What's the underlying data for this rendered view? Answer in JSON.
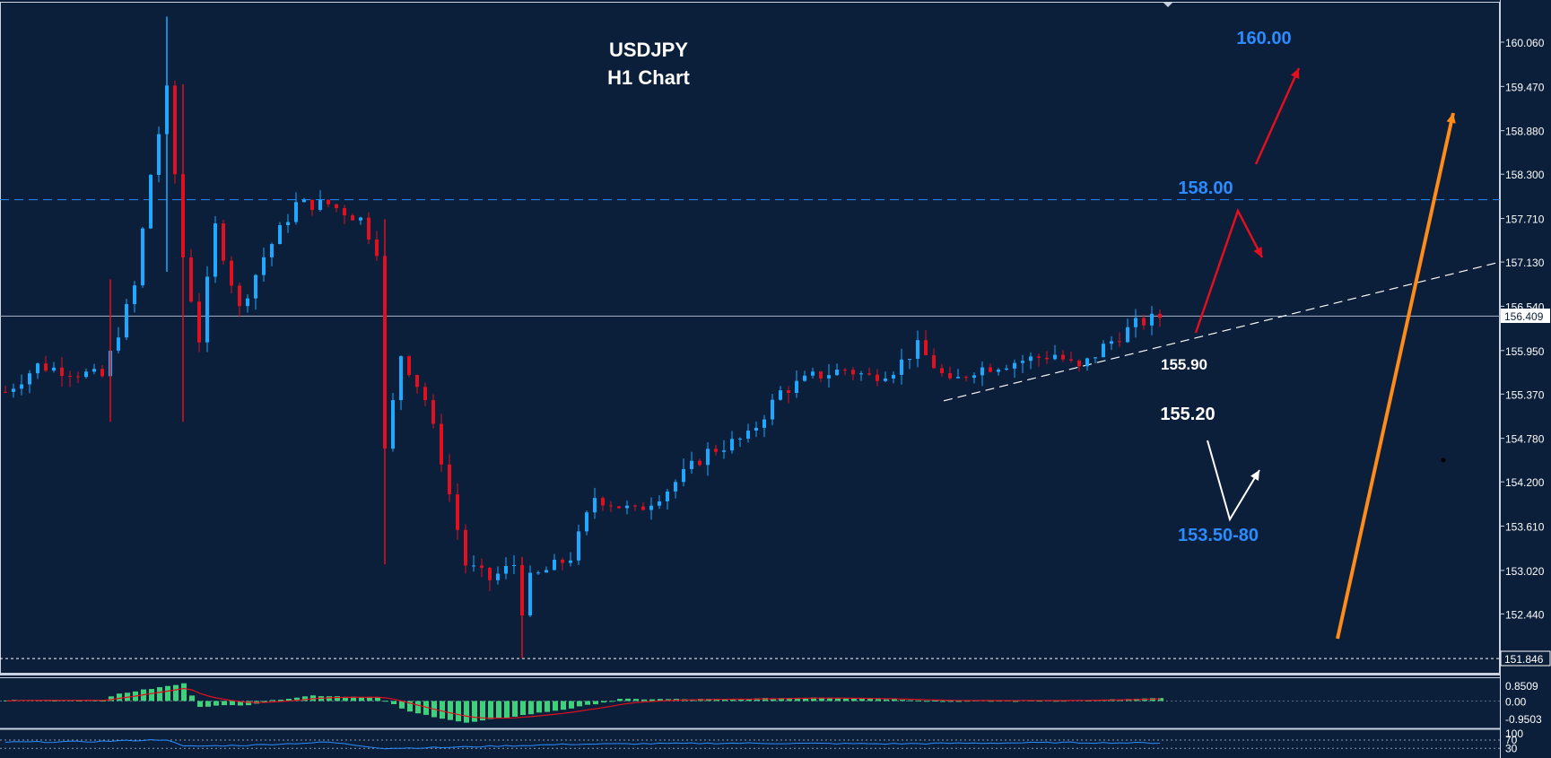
{
  "colors": {
    "background": "#0b1e3a",
    "bull": "#1ea8ff",
    "bear": "#e0101e",
    "accent_blue": "#2a8cff",
    "orange": "#ff8c1a",
    "hist": "#3ed07a",
    "signal": "#e0101e"
  },
  "chart_data": [
    {
      "type": "candlestick",
      "title_line1": "USDJPY",
      "title_line2": "H1 Chart",
      "y_ticks": [
        "160.060",
        "159.470",
        "158.880",
        "158.300",
        "157.710",
        "157.130",
        "156.540",
        "155.950",
        "155.370",
        "154.780",
        "154.200",
        "153.610",
        "153.020",
        "152.440"
      ],
      "ylim": [
        151.8,
        160.4
      ],
      "current_price": "156.409",
      "bottom_price": "151.846",
      "levels": [
        {
          "value": 157.96,
          "style": "dashed",
          "color": "#2a8cff"
        },
        {
          "value": 156.409,
          "style": "solid",
          "color": "#a8b4c8"
        },
        {
          "value": 151.846,
          "style": "dotted",
          "color": "#ffffff"
        }
      ],
      "trendline": {
        "from": [
          0,
          155.28
        ],
        "to": [
          186,
          157.13
        ],
        "color": "#ffffff",
        "style": "dashed"
      },
      "annotations": [
        {
          "text": "160.00",
          "value": 160.0,
          "color": "#2a8cff"
        },
        {
          "text": "158.00",
          "value": 158.0,
          "color": "#2a8cff"
        },
        {
          "text": "155.90",
          "value": 155.9,
          "color": "#ffffff"
        },
        {
          "text": "155.20",
          "value": 155.2,
          "color": "#ffffff"
        },
        {
          "text": "153.50-80",
          "value": 153.65,
          "color": "#2a8cff"
        }
      ],
      "candle_anchors": [
        [
          0,
          155.4
        ],
        [
          4,
          155.75
        ],
        [
          12,
          155.6
        ],
        [
          14,
          156.2
        ],
        [
          16,
          156.8
        ],
        [
          18,
          158.3
        ],
        [
          20,
          159.4
        ],
        [
          22,
          157.2
        ],
        [
          24,
          156.1
        ],
        [
          26,
          157.6
        ],
        [
          29,
          156.5
        ],
        [
          32,
          157.2
        ],
        [
          36,
          157.9
        ],
        [
          40,
          157.9
        ],
        [
          44,
          157.7
        ],
        [
          46,
          157.3
        ],
        [
          47,
          154.6
        ],
        [
          49,
          155.9
        ],
        [
          52,
          155.3
        ],
        [
          54,
          154.5
        ],
        [
          57,
          153.1
        ],
        [
          60,
          152.9
        ],
        [
          63,
          153.1
        ],
        [
          64,
          152.5
        ],
        [
          65,
          152.9
        ],
        [
          70,
          153.2
        ],
        [
          73,
          154.0
        ],
        [
          78,
          153.8
        ],
        [
          82,
          154.1
        ],
        [
          87,
          154.6
        ],
        [
          92,
          154.8
        ],
        [
          96,
          155.4
        ],
        [
          100,
          155.6
        ],
        [
          104,
          155.7
        ],
        [
          107,
          155.6
        ],
        [
          110,
          155.7
        ],
        [
          113,
          156.0
        ],
        [
          117,
          155.5
        ],
        [
          120,
          155.7
        ],
        [
          125,
          155.8
        ],
        [
          130,
          155.9
        ],
        [
          133,
          155.7
        ],
        [
          136,
          156.0
        ],
        [
          140,
          156.3
        ],
        [
          143,
          156.4
        ]
      ]
    },
    {
      "type": "bar",
      "name": "oscillator",
      "y_ticks": [
        "0.8509",
        "0.00",
        "-0.9503"
      ],
      "ylim": [
        -1.4,
        1.2
      ],
      "anchors": [
        [
          0,
          0.05
        ],
        [
          12,
          0.05
        ],
        [
          14,
          0.4
        ],
        [
          22,
          0.95
        ],
        [
          24,
          -0.3
        ],
        [
          30,
          -0.2
        ],
        [
          34,
          0.1
        ],
        [
          38,
          0.3
        ],
        [
          46,
          0.2
        ],
        [
          50,
          -0.6
        ],
        [
          57,
          -1.2
        ],
        [
          62,
          -0.9
        ],
        [
          70,
          -0.4
        ],
        [
          76,
          0.1
        ],
        [
          90,
          0.1
        ],
        [
          100,
          0.2
        ],
        [
          110,
          0.1
        ],
        [
          116,
          0.0
        ],
        [
          135,
          0.05
        ],
        [
          143,
          0.15
        ]
      ]
    },
    {
      "type": "line",
      "name": "rsi",
      "y_ticks": [
        "100",
        "70",
        "30"
      ],
      "ylim": [
        0,
        100
      ],
      "anchors": [
        [
          0,
          60
        ],
        [
          10,
          62
        ],
        [
          20,
          72
        ],
        [
          22,
          40
        ],
        [
          30,
          45
        ],
        [
          40,
          60
        ],
        [
          47,
          30
        ],
        [
          55,
          35
        ],
        [
          70,
          50
        ],
        [
          90,
          55
        ],
        [
          110,
          52
        ],
        [
          130,
          58
        ],
        [
          143,
          56
        ]
      ]
    }
  ]
}
